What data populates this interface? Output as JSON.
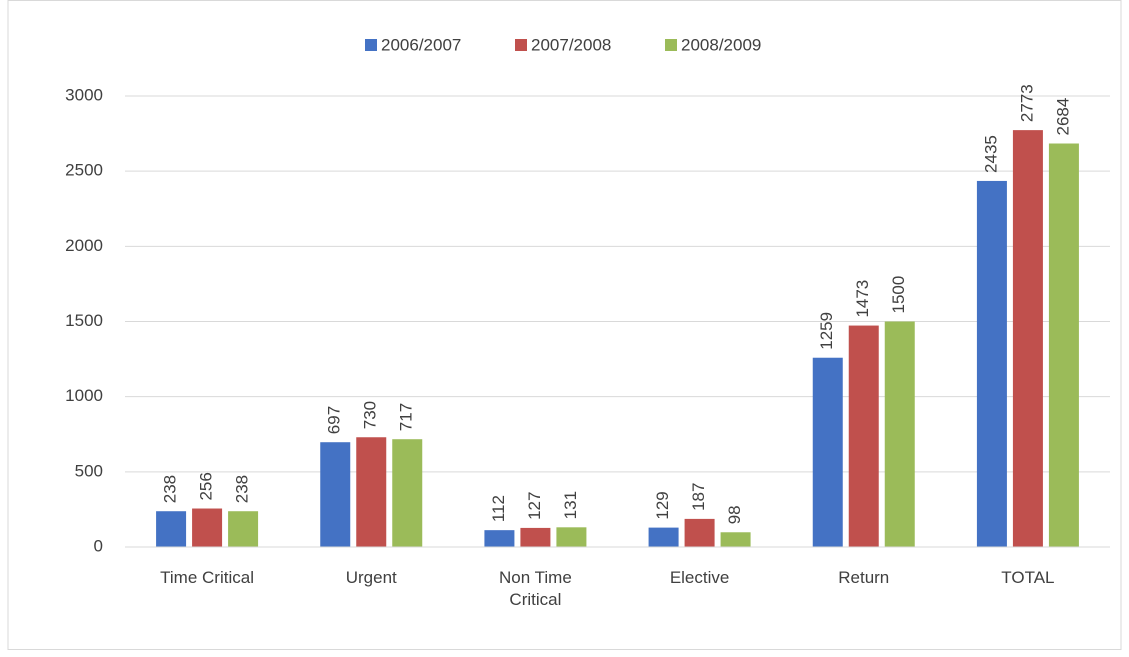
{
  "chart_data": {
    "type": "bar",
    "categories": [
      "Time Critical",
      "Urgent",
      "Non Time Critical",
      "Elective",
      "Return",
      "TOTAL"
    ],
    "series": [
      {
        "name": "2006/2007",
        "color": "#4472c4",
        "values": [
          238,
          697,
          112,
          129,
          1259,
          2435
        ]
      },
      {
        "name": "2007/2008",
        "color": "#c0504d",
        "values": [
          256,
          730,
          127,
          187,
          1473,
          2773
        ]
      },
      {
        "name": "2008/2009",
        "color": "#9bbb59",
        "values": [
          238,
          717,
          131,
          98,
          1500,
          2684
        ]
      }
    ],
    "ylim": [
      0,
      3000
    ],
    "yticks": [
      0,
      500,
      1000,
      1500,
      2000,
      2500,
      3000
    ],
    "grid": true,
    "legend": "top"
  }
}
